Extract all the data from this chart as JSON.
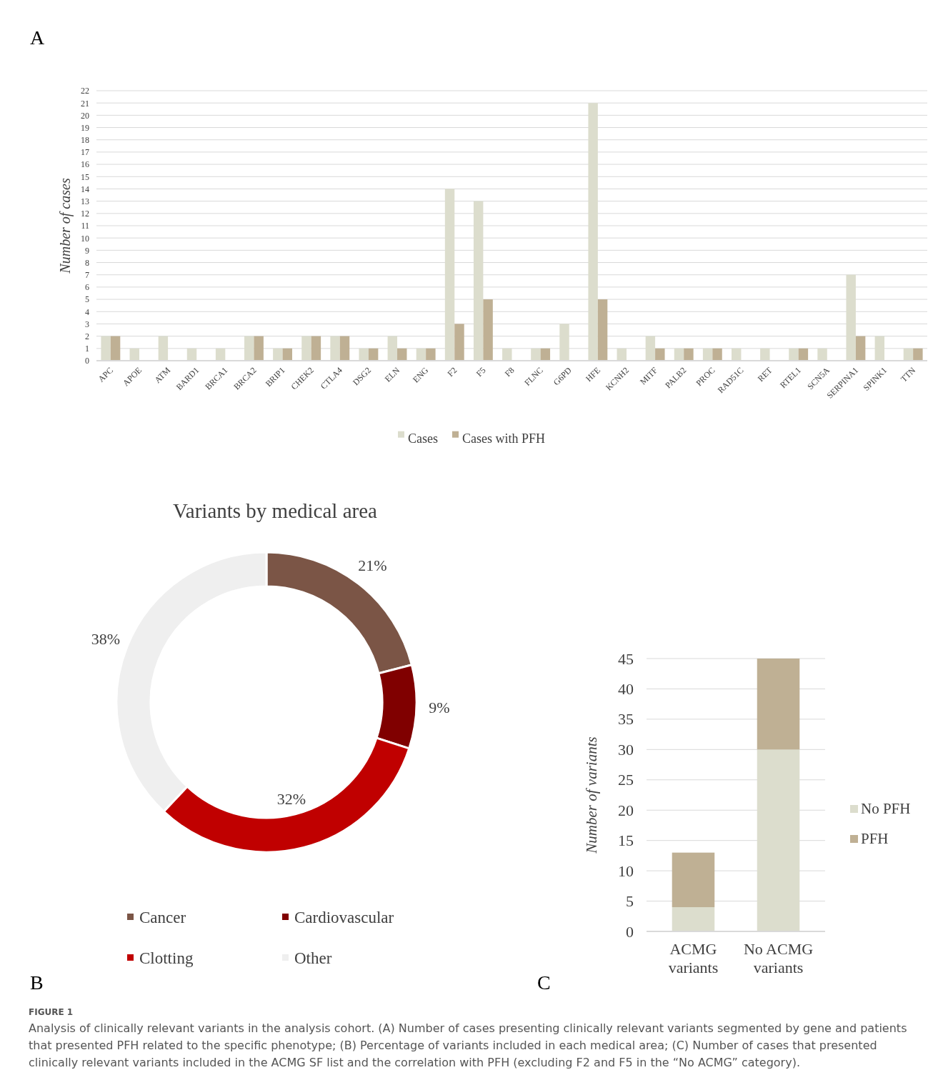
{
  "chart_data": [
    {
      "type": "bar",
      "ylabel": "Number of cases",
      "categories": [
        "APC",
        "APOE",
        "ATM",
        "BARD1",
        "BRCA1",
        "BRCA2",
        "BRIP1",
        "CHEK2",
        "CTLA4",
        "DSG2",
        "ELN",
        "ENG",
        "F2",
        "F5",
        "F8",
        "FLNC",
        "G6PD",
        "HFE",
        "KCNH2",
        "MITF",
        "PALB2",
        "PROC",
        "RAD51C",
        "RET",
        "RTEL1",
        "SCN5A",
        "SERPINA1",
        "SPINK1",
        "TTN"
      ],
      "series": [
        {
          "name": "Cases",
          "color": "#dcddcd",
          "values": [
            2,
            1,
            2,
            1,
            1,
            2,
            1,
            2,
            2,
            1,
            2,
            1,
            14,
            13,
            1,
            1,
            3,
            21,
            1,
            2,
            1,
            1,
            1,
            1,
            1,
            1,
            7,
            2,
            1
          ]
        },
        {
          "name": "Cases with PFH",
          "color": "#bfb094",
          "values": [
            2,
            0,
            0,
            0,
            0,
            2,
            1,
            2,
            2,
            1,
            1,
            1,
            3,
            5,
            0,
            1,
            0,
            5,
            0,
            1,
            1,
            1,
            0,
            0,
            1,
            0,
            2,
            0,
            1
          ]
        }
      ],
      "ylim": [
        0,
        22
      ],
      "yticks": [
        0,
        1,
        2,
        3,
        4,
        5,
        6,
        7,
        8,
        9,
        10,
        11,
        12,
        13,
        14,
        15,
        16,
        17,
        18,
        19,
        20,
        21,
        22
      ],
      "grid": "y",
      "legend": "bottom",
      "annotations": [
        "A",
        "FIGURE 1",
        "Analysis of clinically relevant variants in the analysis cohort. (A) Number of cases presenting clinically relevant variants segmented by gene and patients that presented PFH related to the specific phenotype; (B) Percentage of variants included in each medical area; (C) Number of cases that presented clinically relevant variants included in the ACMG SF list and the correlation with PFH (excluding F2 and F5 in the “No ACMG” category)."
      ]
    },
    {
      "type": "donut",
      "title": "Variants by medical area",
      "categories": [
        "Cancer",
        "Cardiovascular",
        "Clotting",
        "Other"
      ],
      "values": [
        21,
        9,
        32,
        38
      ],
      "colors": [
        "#7b5546",
        "#800000",
        "#c00000",
        "#efefef"
      ],
      "value_labels": [
        "21%",
        "9%",
        "32%",
        "38%"
      ],
      "legend": "bottom",
      "annotations": [
        "B"
      ]
    },
    {
      "type": "bar",
      "stacked": true,
      "ylabel": "Number of variants",
      "categories": [
        "ACMG variants",
        "No ACMG variants"
      ],
      "series": [
        {
          "name": "No PFH",
          "color": "#dcddcd",
          "values": [
            4,
            30
          ]
        },
        {
          "name": "PFH",
          "color": "#bfb094",
          "values": [
            9,
            15
          ]
        }
      ],
      "ylim": [
        0,
        45
      ],
      "yticks": [
        0,
        5,
        10,
        15,
        20,
        25,
        30,
        35,
        40,
        45
      ],
      "grid": "y",
      "legend": "right",
      "annotations": [
        "C"
      ]
    }
  ]
}
